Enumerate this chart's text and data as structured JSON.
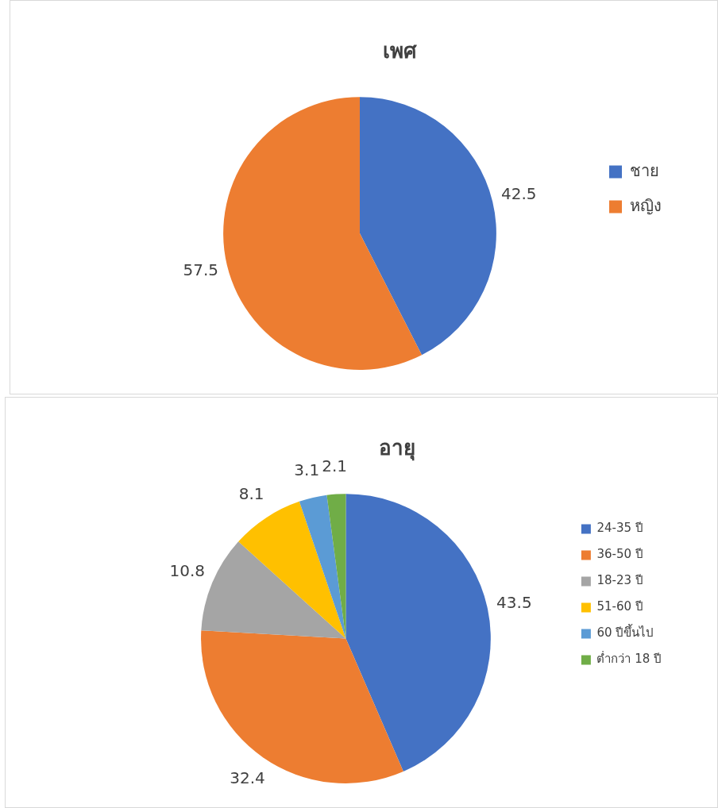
{
  "chart_data": [
    {
      "type": "pie",
      "title": "เพศ",
      "categories": [
        "ชาย",
        "หญิง"
      ],
      "values": [
        42.5,
        57.5
      ],
      "colors": [
        "#4472c4",
        "#ed7d31"
      ],
      "data_labels": true,
      "legend": "right"
    },
    {
      "type": "pie",
      "title": "อายุ",
      "categories": [
        "24-35 ปี",
        "36-50 ปี",
        "18-23 ปี",
        "51-60 ปี",
        "60 ปีขึ้นไป",
        "ต่ำกว่า 18 ปี"
      ],
      "values": [
        43.5,
        32.4,
        10.8,
        8.1,
        3.1,
        2.1
      ],
      "colors": [
        "#4472c4",
        "#ed7d31",
        "#a5a5a5",
        "#ffc000",
        "#5b9bd5",
        "#70ad47"
      ],
      "data_labels": true,
      "legend": "right"
    }
  ]
}
